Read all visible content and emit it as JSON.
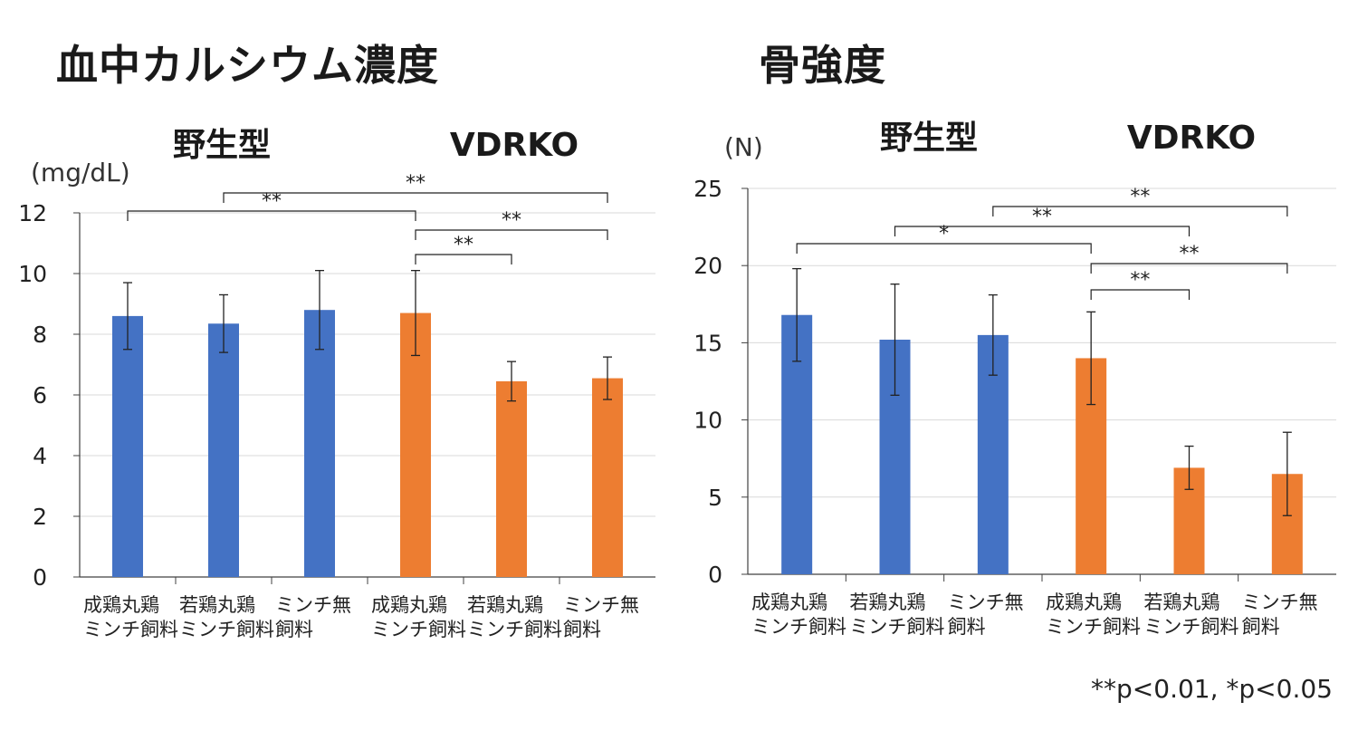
{
  "footnote": "**p<0.01, *p<0.05",
  "colors": {
    "wildtype": "#4472C4",
    "vdrko": "#ED7D31",
    "grid": "#d9d9d9",
    "axis": "#404040"
  },
  "chart_data": [
    {
      "type": "bar",
      "title": "血中カルシウム濃度",
      "unit": "(mg/dL)",
      "group_labels": [
        "野生型",
        "VDRKO"
      ],
      "categories": [
        [
          "成鶏丸鶏",
          "ミンチ飼料"
        ],
        [
          "若鶏丸鶏",
          "ミンチ飼料"
        ],
        [
          "ミンチ無",
          "飼料"
        ],
        [
          "成鶏丸鶏",
          "ミンチ飼料"
        ],
        [
          "若鶏丸鶏",
          "ミンチ飼料"
        ],
        [
          "ミンチ無",
          "飼料"
        ]
      ],
      "values": [
        8.6,
        8.35,
        8.8,
        8.7,
        6.45,
        6.55
      ],
      "error": [
        1.1,
        0.95,
        1.3,
        1.4,
        0.65,
        0.7
      ],
      "bar_groups": [
        "野生型",
        "野生型",
        "野生型",
        "VDRKO",
        "VDRKO",
        "VDRKO"
      ],
      "ylim": [
        0,
        12
      ],
      "yticks": [
        0,
        2,
        4,
        6,
        8,
        10,
        12
      ],
      "grid": true,
      "significance": [
        {
          "from": 1,
          "to": 4,
          "label": "**"
        },
        {
          "from": 2,
          "to": 6,
          "label": "**"
        },
        {
          "from": 4,
          "to": 6,
          "label": "**"
        },
        {
          "from": 4,
          "to": 5,
          "label": "**"
        }
      ]
    },
    {
      "type": "bar",
      "title": "骨強度",
      "unit": "(N)",
      "group_labels": [
        "野生型",
        "VDRKO"
      ],
      "categories": [
        [
          "成鶏丸鶏",
          "ミンチ飼料"
        ],
        [
          "若鶏丸鶏",
          "ミンチ飼料"
        ],
        [
          "ミンチ無",
          "飼料"
        ],
        [
          "成鶏丸鶏",
          "ミンチ飼料"
        ],
        [
          "若鶏丸鶏",
          "ミンチ飼料"
        ],
        [
          "ミンチ無",
          "飼料"
        ]
      ],
      "values": [
        16.8,
        15.2,
        15.5,
        14.0,
        6.9,
        6.5
      ],
      "error": [
        3.0,
        3.6,
        2.6,
        3.0,
        1.4,
        2.7
      ],
      "bar_groups": [
        "野生型",
        "野生型",
        "野生型",
        "VDRKO",
        "VDRKO",
        "VDRKO"
      ],
      "ylim": [
        0,
        25
      ],
      "yticks": [
        0,
        5,
        10,
        15,
        20,
        25
      ],
      "grid": true,
      "significance": [
        {
          "from": 3,
          "to": 6,
          "label": "**"
        },
        {
          "from": 2,
          "to": 5,
          "label": "**"
        },
        {
          "from": 1,
          "to": 4,
          "label": "*"
        },
        {
          "from": 4,
          "to": 6,
          "label": "**"
        },
        {
          "from": 4,
          "to": 5,
          "label": "**"
        }
      ]
    }
  ]
}
